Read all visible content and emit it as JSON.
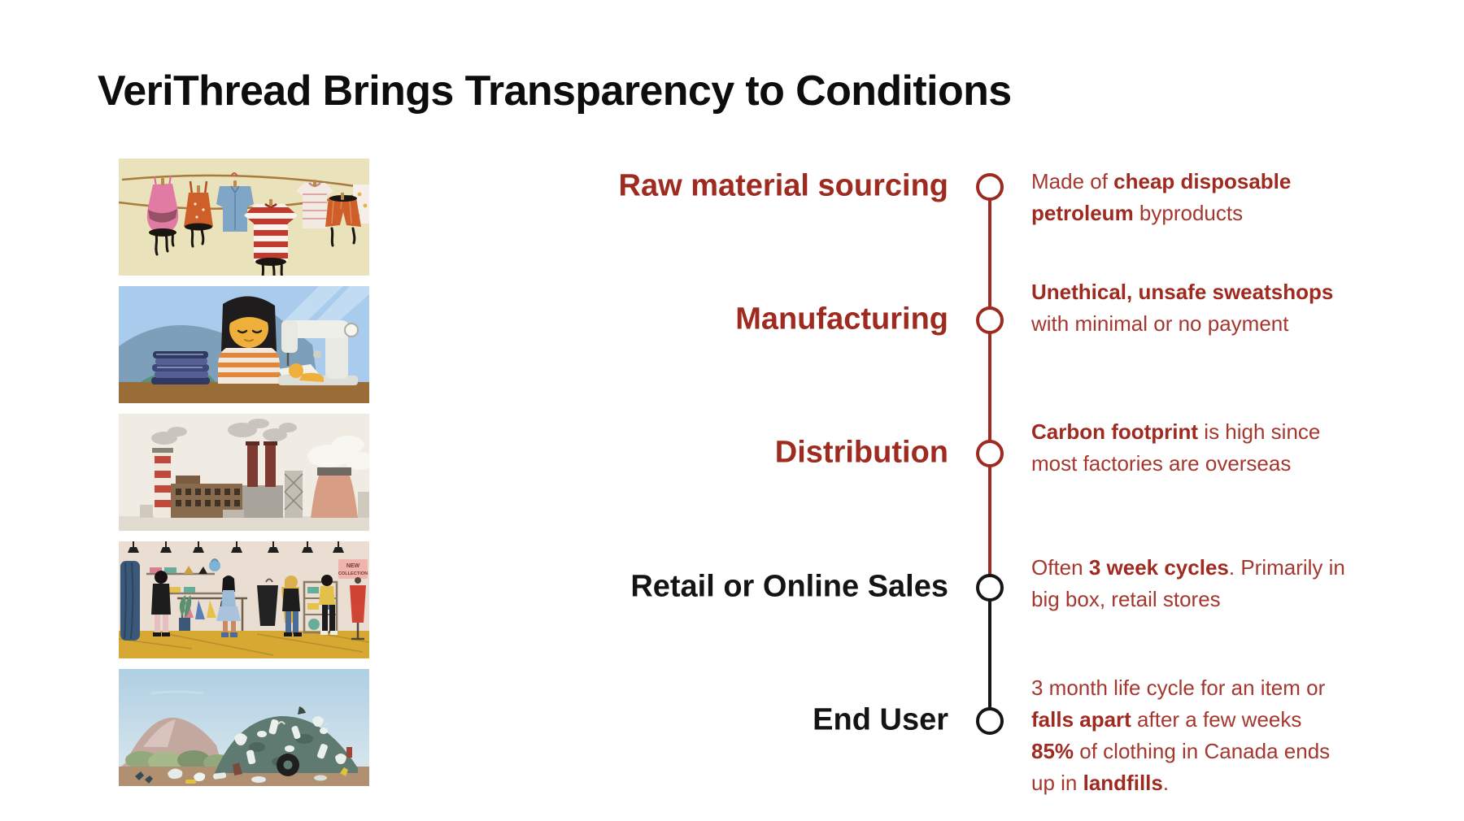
{
  "title": "VeriThread Brings Transparency to Conditions",
  "colors": {
    "accent_red": "#9E2A20",
    "body_text_red": "#A4372E",
    "black": "#161616",
    "background": "#FFFFFF"
  },
  "illustrations": {
    "items": [
      "clothes-drying-on-line-dripping-dye",
      "garment-worker-at-sewing-machine",
      "factory-with-smokestacks",
      "retail-clothing-store-with-shoppers",
      "landfill-trash-pile"
    ],
    "retail_sign": {
      "line1": "NEW",
      "line2": "COLLECTION"
    }
  },
  "timeline": {
    "stages": [
      {
        "label": "Raw material sourcing",
        "theme": "red",
        "description": [
          [
            {
              "t": "Made of ",
              "b": false
            },
            {
              "t": "cheap disposable",
              "b": true
            }
          ],
          [
            {
              "t": "petroleum",
              "b": true
            },
            {
              "t": " byproducts",
              "b": false
            }
          ]
        ]
      },
      {
        "label": "Manufacturing",
        "theme": "red",
        "description": [
          [
            {
              "t": "Unethical, unsafe sweatshops",
              "b": true
            }
          ],
          [
            {
              "t": "with minimal or no payment",
              "b": false
            }
          ]
        ]
      },
      {
        "label": "Distribution",
        "theme": "red",
        "description": [
          [
            {
              "t": "Carbon footprint",
              "b": true
            },
            {
              "t": " is high since",
              "b": false
            }
          ],
          [
            {
              "t": "most factories are overseas",
              "b": false
            }
          ]
        ]
      },
      {
        "label": "Retail or Online Sales",
        "theme": "black",
        "description": [
          [
            {
              "t": "Often ",
              "b": false
            },
            {
              "t": "3 week cycles",
              "b": true
            },
            {
              "t": ". Primarily in",
              "b": false
            }
          ],
          [
            {
              "t": "big box, retail stores",
              "b": false
            }
          ]
        ]
      },
      {
        "label": "End User",
        "theme": "black",
        "description": [
          [
            {
              "t": "3 month life cycle for an item or",
              "b": false
            }
          ],
          [
            {
              "t": "falls apart",
              "b": true
            },
            {
              "t": " after a few weeks",
              "b": false
            }
          ],
          [
            {
              "t": "85%",
              "b": true
            },
            {
              "t": " of clothing in Canada ends",
              "b": false
            }
          ],
          [
            {
              "t": "up in ",
              "b": false
            },
            {
              "t": "landfills",
              "b": true
            },
            {
              "t": ".",
              "b": false
            }
          ]
        ]
      }
    ]
  }
}
